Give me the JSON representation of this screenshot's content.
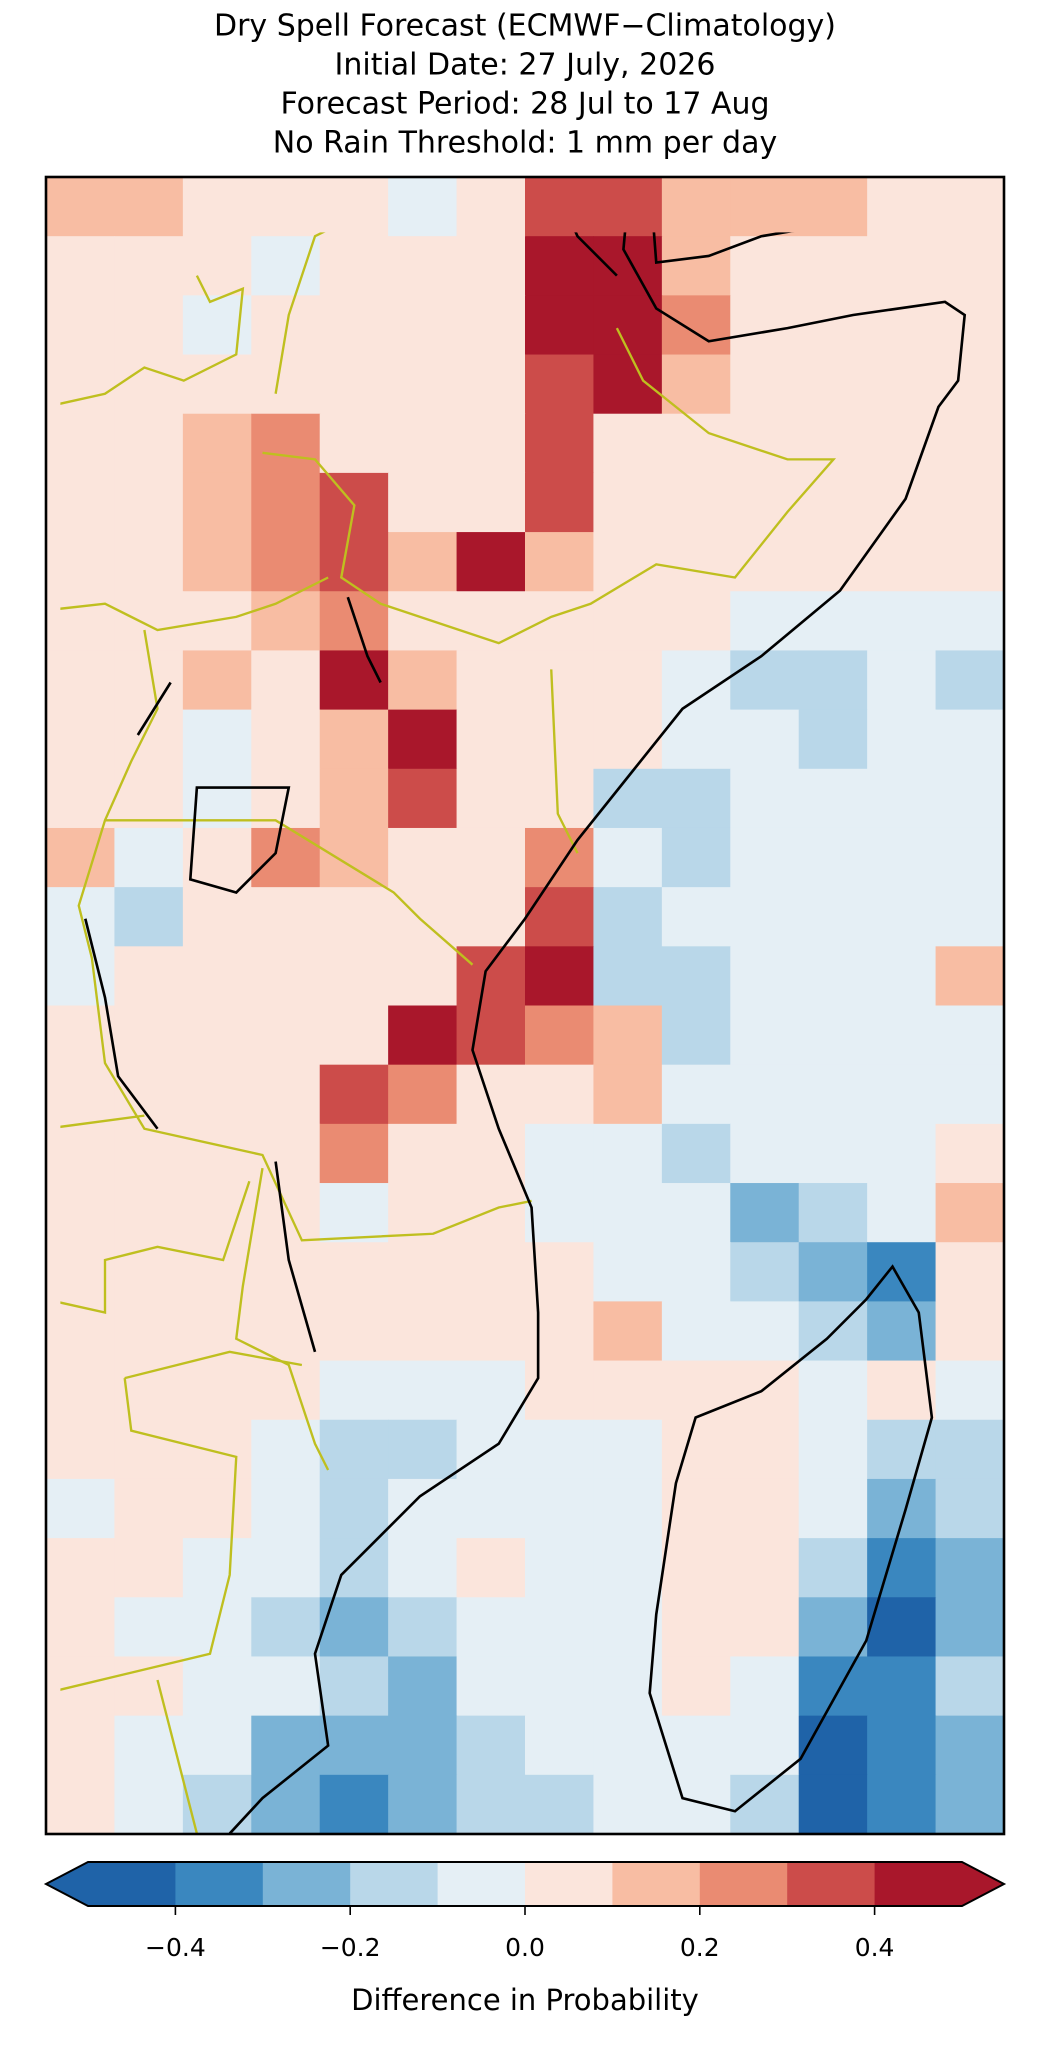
{
  "chart_data": {
    "type": "heatmap",
    "title": [
      "Dry Spell Forecast (ECMWF−Climatology)",
      "Initial Date: 27 July, 2026",
      "Forecast Period: 28 Jul to 17 Aug",
      "No Rain Threshold: 1 mm per day"
    ],
    "values": [
      [
        0.15,
        0.15,
        0.05,
        0.05,
        0.05,
        -0.05,
        0.05,
        0.35,
        0.35,
        0.15,
        0.15,
        0.15,
        0.05,
        0.05
      ],
      [
        0.05,
        0.05,
        0.05,
        -0.05,
        0.05,
        0.05,
        0.05,
        0.45,
        0.45,
        0.15,
        0.05,
        0.05,
        0.05,
        0.05
      ],
      [
        0.05,
        0.05,
        -0.05,
        0.05,
        0.05,
        0.05,
        0.05,
        0.45,
        0.45,
        0.25,
        0.05,
        0.05,
        0.05,
        0.05
      ],
      [
        0.05,
        0.05,
        0.05,
        0.05,
        0.05,
        0.05,
        0.05,
        0.35,
        0.45,
        0.15,
        0.05,
        0.05,
        0.05,
        0.05
      ],
      [
        0.05,
        0.05,
        0.15,
        0.25,
        0.05,
        0.05,
        0.05,
        0.35,
        0.05,
        0.05,
        0.05,
        0.05,
        0.05,
        0.05
      ],
      [
        0.05,
        0.05,
        0.15,
        0.25,
        0.35,
        0.05,
        0.05,
        0.35,
        0.05,
        0.05,
        0.05,
        0.05,
        0.05,
        0.05
      ],
      [
        0.05,
        0.05,
        0.15,
        0.25,
        0.35,
        0.15,
        0.45,
        0.15,
        0.05,
        0.05,
        0.05,
        0.05,
        0.05,
        0.05
      ],
      [
        0.05,
        0.05,
        0.05,
        0.15,
        0.25,
        0.05,
        0.05,
        0.05,
        0.05,
        0.05,
        -0.05,
        -0.05,
        -0.05,
        -0.05
      ],
      [
        0.05,
        0.05,
        0.15,
        0.05,
        0.45,
        0.15,
        0.05,
        0.05,
        0.05,
        -0.05,
        -0.15,
        -0.15,
        -0.05,
        -0.15
      ],
      [
        0.05,
        0.05,
        -0.05,
        0.05,
        0.15,
        0.45,
        0.05,
        0.05,
        0.05,
        -0.05,
        -0.05,
        -0.15,
        -0.05,
        -0.05
      ],
      [
        0.05,
        0.05,
        -0.05,
        0.05,
        0.15,
        0.35,
        0.05,
        0.05,
        -0.15,
        -0.15,
        -0.05,
        -0.05,
        -0.05,
        -0.05
      ],
      [
        0.15,
        -0.05,
        0.05,
        0.25,
        0.15,
        0.05,
        0.05,
        0.25,
        -0.05,
        -0.15,
        -0.05,
        -0.05,
        -0.05,
        -0.05
      ],
      [
        -0.05,
        -0.15,
        0.05,
        0.05,
        0.05,
        0.05,
        0.05,
        0.35,
        -0.15,
        -0.05,
        -0.05,
        -0.05,
        -0.05,
        -0.05
      ],
      [
        -0.05,
        0.05,
        0.05,
        0.05,
        0.05,
        0.05,
        0.35,
        0.45,
        -0.15,
        -0.15,
        -0.05,
        -0.05,
        -0.05,
        0.15
      ],
      [
        0.05,
        0.05,
        0.05,
        0.05,
        0.05,
        0.45,
        0.35,
        0.25,
        0.15,
        -0.15,
        -0.05,
        -0.05,
        -0.05,
        -0.05
      ],
      [
        0.05,
        0.05,
        0.05,
        0.05,
        0.35,
        0.25,
        0.05,
        0.05,
        0.15,
        -0.05,
        -0.05,
        -0.05,
        -0.05,
        -0.05
      ],
      [
        0.05,
        0.05,
        0.05,
        0.05,
        0.25,
        0.05,
        0.05,
        -0.05,
        -0.05,
        -0.15,
        -0.05,
        -0.05,
        -0.05,
        0.05
      ],
      [
        0.05,
        0.05,
        0.05,
        0.05,
        -0.05,
        0.05,
        0.05,
        -0.05,
        -0.05,
        -0.05,
        -0.25,
        -0.15,
        -0.05,
        0.15
      ],
      [
        0.05,
        0.05,
        0.05,
        0.05,
        0.05,
        0.05,
        0.05,
        0.05,
        -0.05,
        -0.05,
        -0.15,
        -0.25,
        -0.35,
        0.05
      ],
      [
        0.05,
        0.05,
        0.05,
        0.05,
        0.05,
        0.05,
        0.05,
        0.05,
        0.15,
        -0.05,
        -0.05,
        -0.15,
        -0.25,
        0.05
      ],
      [
        0.05,
        0.05,
        0.05,
        0.05,
        -0.05,
        -0.05,
        -0.05,
        0.05,
        0.05,
        0.05,
        0.05,
        -0.05,
        0.05,
        -0.05
      ],
      [
        0.05,
        0.05,
        0.05,
        -0.05,
        -0.15,
        -0.15,
        -0.05,
        -0.05,
        -0.05,
        0.05,
        0.05,
        -0.05,
        -0.15,
        -0.15
      ],
      [
        -0.05,
        0.05,
        0.05,
        -0.05,
        -0.15,
        -0.05,
        -0.05,
        -0.05,
        -0.05,
        0.05,
        0.05,
        -0.05,
        -0.25,
        -0.15
      ],
      [
        0.05,
        0.05,
        -0.05,
        -0.05,
        -0.15,
        -0.05,
        0.05,
        -0.05,
        -0.05,
        0.05,
        0.05,
        -0.15,
        -0.35,
        -0.25
      ],
      [
        0.05,
        -0.05,
        -0.05,
        -0.15,
        -0.25,
        -0.15,
        -0.05,
        -0.05,
        -0.05,
        0.05,
        0.05,
        -0.25,
        -0.45,
        -0.25
      ],
      [
        0.05,
        0.05,
        -0.05,
        -0.05,
        -0.15,
        -0.25,
        -0.05,
        -0.05,
        -0.05,
        0.05,
        -0.05,
        -0.35,
        -0.35,
        -0.15
      ],
      [
        0.05,
        -0.05,
        -0.05,
        -0.25,
        -0.25,
        -0.25,
        -0.15,
        -0.05,
        -0.05,
        -0.05,
        -0.05,
        -0.45,
        -0.35,
        -0.25
      ],
      [
        0.05,
        -0.05,
        -0.15,
        -0.25,
        -0.35,
        -0.25,
        -0.15,
        -0.15,
        -0.05,
        -0.05,
        -0.15,
        -0.45,
        -0.35,
        -0.25
      ]
    ],
    "colorbar": {
      "boundaries": [
        -0.5,
        -0.4,
        -0.3,
        -0.2,
        -0.1,
        0,
        0.1,
        0.2,
        0.3,
        0.4,
        0.5
      ],
      "colors": [
        "#1f63a8",
        "#3a87bf",
        "#7ab3d6",
        "#b9d7e9",
        "#e5eff5",
        "#fbe5dc",
        "#f8bda3",
        "#ea8b72",
        "#cc4c4a",
        "#a9172b"
      ],
      "ticks": [
        {
          "value": -0.4,
          "label": "−0.4"
        },
        {
          "value": -0.2,
          "label": "−0.2"
        },
        {
          "value": 0,
          "label": "0.0"
        },
        0.2,
        0.4
      ],
      "label": "Difference in Probability"
    }
  }
}
